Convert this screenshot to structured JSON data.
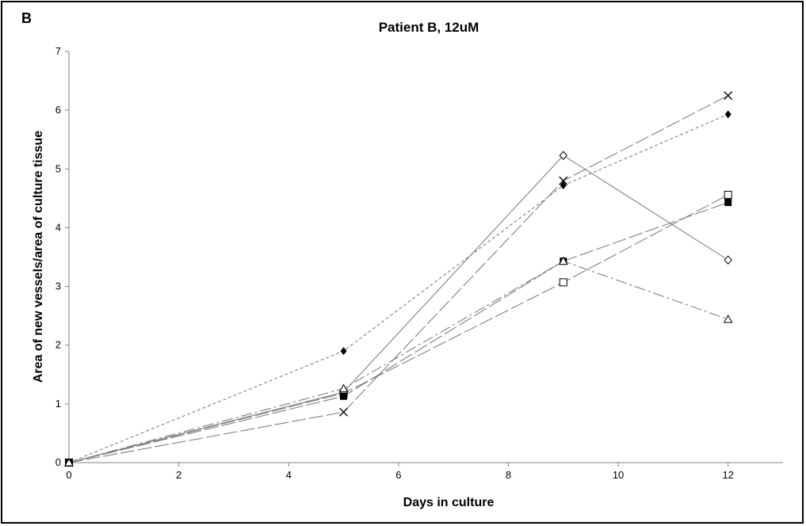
{
  "panel_label": "B",
  "chart_data": {
    "type": "line",
    "title": "Patient B, 12uM",
    "xlabel": "Days in culture",
    "ylabel": "Area of new vessels/area of culture tissue",
    "xlim": [
      0,
      13
    ],
    "ylim": [
      0,
      7
    ],
    "x_ticks": [
      0,
      2,
      4,
      6,
      8,
      10,
      12
    ],
    "y_ticks": [
      0,
      1,
      2,
      3,
      4,
      5,
      6,
      7
    ],
    "grid": false,
    "legend": "none",
    "x": [
      0,
      5,
      9,
      12
    ],
    "series": [
      {
        "marker": "filled-diamond",
        "dash": "dotted",
        "values": [
          0,
          1.9,
          4.72,
          5.93
        ]
      },
      {
        "marker": "cross",
        "dash": "long-dash",
        "values": [
          0,
          0.86,
          4.8,
          6.25
        ]
      },
      {
        "marker": "open-diamond",
        "dash": "solid",
        "values": [
          0,
          1.2,
          5.23,
          3.45
        ]
      },
      {
        "marker": "open-square",
        "dash": "long-dash",
        "values": [
          0,
          1.18,
          3.07,
          4.56
        ]
      },
      {
        "marker": "filled-square",
        "dash": "long-dash",
        "values": [
          0,
          1.13,
          3.43,
          4.43
        ]
      },
      {
        "marker": "open-triangle",
        "dash": "dash-dot",
        "values": [
          0,
          1.26,
          3.43,
          2.44
        ]
      }
    ],
    "colors": {
      "line": "#808080",
      "marker": "#000000",
      "axis": "#808080"
    }
  }
}
